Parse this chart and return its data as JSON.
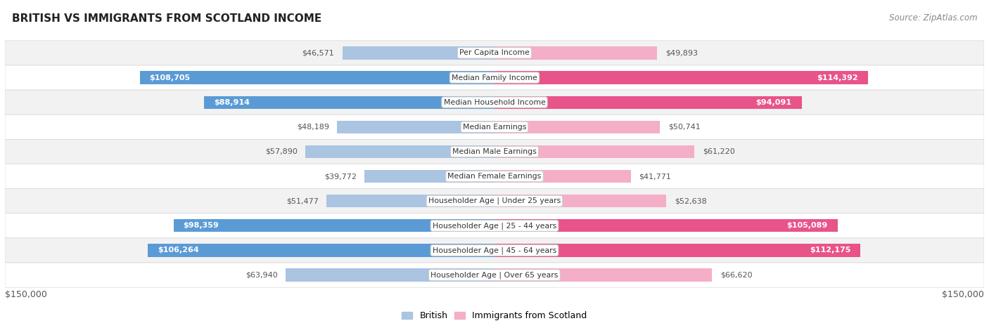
{
  "title": "BRITISH VS IMMIGRANTS FROM SCOTLAND INCOME",
  "source": "Source: ZipAtlas.com",
  "categories": [
    "Per Capita Income",
    "Median Family Income",
    "Median Household Income",
    "Median Earnings",
    "Median Male Earnings",
    "Median Female Earnings",
    "Householder Age | Under 25 years",
    "Householder Age | 25 - 44 years",
    "Householder Age | 45 - 64 years",
    "Householder Age | Over 65 years"
  ],
  "british_values": [
    46571,
    108705,
    88914,
    48189,
    57890,
    39772,
    51477,
    98359,
    106264,
    63940
  ],
  "immigrant_values": [
    49893,
    114392,
    94091,
    50741,
    61220,
    41771,
    52638,
    105089,
    112175,
    66620
  ],
  "british_labels": [
    "$46,571",
    "$108,705",
    "$88,914",
    "$48,189",
    "$57,890",
    "$39,772",
    "$51,477",
    "$98,359",
    "$106,264",
    "$63,940"
  ],
  "immigrant_labels": [
    "$49,893",
    "$114,392",
    "$94,091",
    "$50,741",
    "$61,220",
    "$41,771",
    "$52,638",
    "$105,089",
    "$112,175",
    "$66,620"
  ],
  "max_val": 150000,
  "british_color_light": "#aac4e2",
  "british_color_dark": "#5b9bd5",
  "immigrant_color_light": "#f4aec8",
  "immigrant_color_dark": "#e8538a",
  "bar_height": 0.52,
  "row_bg_even": "#f2f2f2",
  "row_bg_odd": "#ffffff",
  "label_threshold": 80000,
  "x_label_left": "$150,000",
  "x_label_right": "$150,000",
  "legend_british": "British",
  "legend_immigrant": "Immigrants from Scotland",
  "title_fontsize": 11,
  "label_fontsize": 8,
  "cat_fontsize": 7.8
}
